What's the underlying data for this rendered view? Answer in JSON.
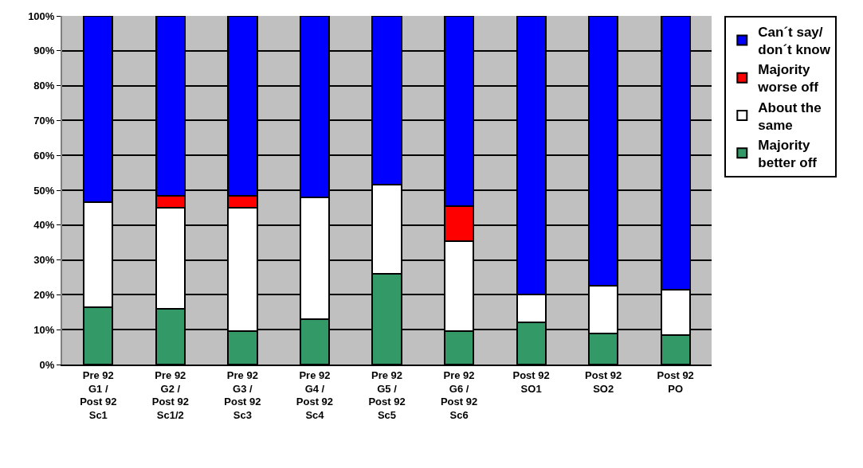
{
  "chart_data": {
    "type": "bar",
    "stacked": true,
    "categories": [
      "Pre 92\nG1 /\nPost 92\nSc1",
      "Pre 92\nG2 /\nPost 92\nSc1/2",
      "Pre 92\nG3 /\nPost 92\nSc3",
      "Pre 92\nG4 /\nPost 92\nSc4",
      "Pre 92\nG5 /\nPost 92\nSc5",
      "Pre 92\nG6 /\nPost 92\nSc6",
      "Post 92\nSO1",
      "Post 92\nSO2",
      "Post 92\nPO"
    ],
    "series": [
      {
        "name": "Majority\nbetter off",
        "color": "#339966",
        "values": [
          16.5,
          16,
          9.5,
          13,
          26,
          9.5,
          12,
          9,
          8.5
        ]
      },
      {
        "name": "About the\nsame",
        "color": "#ffffff",
        "values": [
          30,
          29,
          35.5,
          35,
          25.5,
          26,
          8,
          13.5,
          13
        ]
      },
      {
        "name": "Majority\nworse off",
        "color": "#ff0000",
        "values": [
          0,
          3.5,
          3.5,
          0,
          0,
          10,
          0,
          0,
          0
        ]
      },
      {
        "name": "Can´t say/\ndon´t know",
        "color": "#0000ff",
        "values": [
          53.5,
          51.5,
          51.5,
          52,
          48.5,
          54.5,
          80,
          77.5,
          78.5
        ]
      }
    ],
    "ylim": [
      0,
      100
    ],
    "yticks": [
      {
        "value": 0,
        "label": "0%"
      },
      {
        "value": 10,
        "label": "10%"
      },
      {
        "value": 20,
        "label": "20%"
      },
      {
        "value": 30,
        "label": "30%"
      },
      {
        "value": 40,
        "label": "40%"
      },
      {
        "value": 50,
        "label": "50%"
      },
      {
        "value": 60,
        "label": "60%"
      },
      {
        "value": 70,
        "label": "70%"
      },
      {
        "value": 80,
        "label": "80%"
      },
      {
        "value": 90,
        "label": "90%"
      },
      {
        "value": 100,
        "label": "100%"
      }
    ],
    "grid": "y",
    "legend": "right"
  }
}
